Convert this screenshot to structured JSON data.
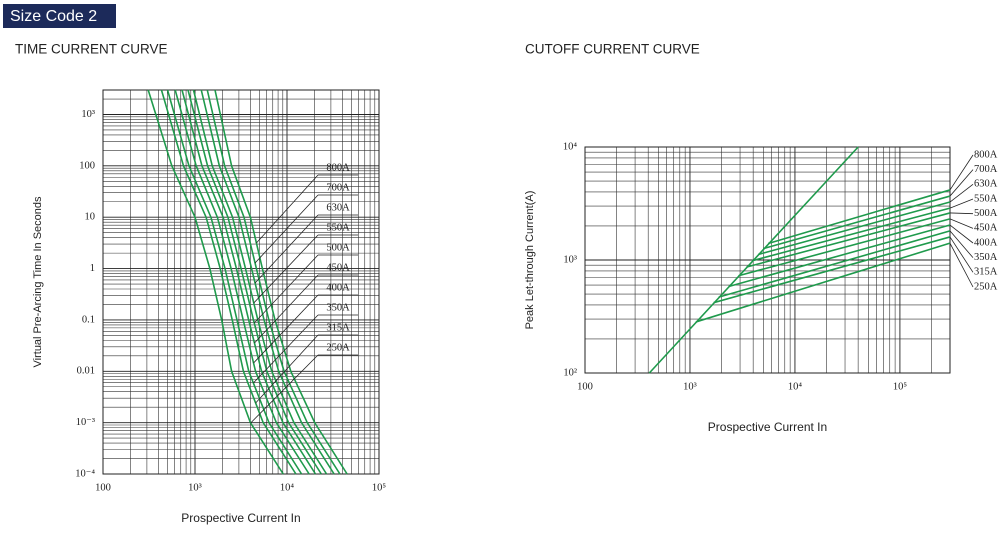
{
  "header": {
    "badge": "Size Code 2"
  },
  "chart_data": [
    {
      "type": "line",
      "title": "TIME CURRENT CURVE",
      "xlabel": "Prospective Current In",
      "ylabel": "Virtual Pre-Arcing Time In Seconds",
      "xscale": "log",
      "yscale": "log",
      "grid": true,
      "xlim": [
        100,
        100000
      ],
      "ylim": [
        0.0001,
        3000
      ],
      "xticks": [
        100,
        {
          "value": 1000,
          "label": "10³"
        },
        {
          "value": 10000,
          "label": "10⁴"
        },
        {
          "value": 100000,
          "label": "10⁵"
        }
      ],
      "yticks": [
        {
          "value": 0.0001,
          "label": "10⁻⁴"
        },
        {
          "value": 0.001,
          "label": "10⁻³"
        },
        0.01,
        0.1,
        1,
        10,
        100,
        {
          "value": 1000,
          "label": "10³"
        }
      ],
      "series": [
        {
          "name": "800A",
          "color": "#1f9a4c",
          "x": [
            1650,
            2500,
            4000,
            5400,
            7400,
            11000,
            20000,
            45000
          ],
          "values": [
            3000,
            100,
            10,
            1,
            0.1,
            0.01,
            0.001,
            0.0001
          ]
        },
        {
          "name": "700A",
          "color": "#1f9a4c",
          "x": [
            1360,
            2100,
            3410,
            4650,
            6350,
            9290,
            16600,
            37600
          ],
          "values": [
            3000,
            100,
            10,
            1,
            0.1,
            0.01,
            0.001,
            0.0001
          ]
        },
        {
          "name": "630A",
          "color": "#1f9a4c",
          "x": [
            1170,
            1840,
            3010,
            4120,
            5630,
            8120,
            14400,
            32500
          ],
          "values": [
            3000,
            100,
            10,
            1,
            0.1,
            0.01,
            0.001,
            0.0001
          ]
        },
        {
          "name": "550A",
          "color": "#1f9a4c",
          "x": [
            963,
            1540,
            2560,
            3540,
            4820,
            6830,
            11900,
            26900
          ],
          "values": [
            3000,
            100,
            10,
            1,
            0.1,
            0.01,
            0.001,
            0.0001
          ]
        },
        {
          "name": "500A",
          "color": "#1f9a4c",
          "x": [
            840,
            1370,
            2280,
            3170,
            4320,
            6040,
            10400,
            23600
          ],
          "values": [
            3000,
            100,
            10,
            1,
            0.1,
            0.01,
            0.001,
            0.0001
          ]
        },
        {
          "name": "450A",
          "color": "#1f9a4c",
          "x": [
            723,
            1190,
            2020,
            2820,
            3830,
            5290,
            9030,
            20400
          ],
          "values": [
            3000,
            100,
            10,
            1,
            0.1,
            0.01,
            0.001,
            0.0001
          ]
        },
        {
          "name": "400A",
          "color": "#1f9a4c",
          "x": [
            609,
            1030,
            1750,
            2470,
            3340,
            4550,
            7660,
            17400
          ],
          "values": [
            3000,
            100,
            10,
            1,
            0.1,
            0.01,
            0.001,
            0.0001
          ]
        },
        {
          "name": "350A",
          "color": "#1f9a4c",
          "x": [
            503,
            860,
            1490,
            2120,
            2860,
            3840,
            6370,
            14400
          ],
          "values": [
            3000,
            100,
            10,
            1,
            0.1,
            0.01,
            0.001,
            0.0001
          ]
        },
        {
          "name": "315A",
          "color": "#1f9a4c",
          "x": [
            432,
            750,
            1320,
            1880,
            2540,
            3360,
            5510,
            12500
          ],
          "values": [
            3000,
            100,
            10,
            1,
            0.1,
            0.01,
            0.001,
            0.0001
          ]
        },
        {
          "name": "250A",
          "color": "#1f9a4c",
          "x": [
            310,
            560,
            1000,
            1450,
            1950,
            2500,
            4000,
            9100
          ],
          "values": [
            3000,
            100,
            10,
            1,
            0.1,
            0.01,
            0.001,
            0.0001
          ]
        }
      ]
    },
    {
      "type": "line",
      "title": "CUTOFF CURRENT CURVE",
      "xlabel": "Prospective Current In",
      "ylabel": "Peak Let-through Current(A)",
      "xscale": "log",
      "yscale": "log",
      "grid": true,
      "xlim": [
        100,
        300000
      ],
      "ylim": [
        100,
        10000
      ],
      "xticks": [
        100,
        {
          "value": 1000,
          "label": "10³"
        },
        {
          "value": 10000,
          "label": "10⁴"
        },
        {
          "value": 100000,
          "label": "10⁵"
        }
      ],
      "yticks": [
        {
          "value": 100,
          "label": "10²"
        },
        {
          "value": 1000,
          "label": "10³"
        },
        {
          "value": 10000,
          "label": "10⁴"
        }
      ],
      "series": [
        {
          "color": "#1f9a4c",
          "x": [
            410,
            40000
          ],
          "values": [
            100,
            10000
          ]
        },
        {
          "name": "800A",
          "color": "#1f9a4c",
          "x": [
            5560,
            300000
          ],
          "values": [
            1400,
            4170
          ]
        },
        {
          "name": "700A",
          "color": "#1f9a4c",
          "x": [
            4990,
            300000
          ],
          "values": [
            1260,
            3680
          ]
        },
        {
          "name": "630A",
          "color": "#1f9a4c",
          "x": [
            4480,
            300000
          ],
          "values": [
            1120,
            3260
          ]
        },
        {
          "name": "550A",
          "color": "#1f9a4c",
          "x": [
            3930,
            300000
          ],
          "values": [
            986,
            2880
          ]
        },
        {
          "name": "500A",
          "color": "#1f9a4c",
          "x": [
            3450,
            300000
          ],
          "values": [
            865,
            2610
          ]
        },
        {
          "name": "450A",
          "color": "#1f9a4c",
          "x": [
            2900,
            300000
          ],
          "values": [
            726,
            2310
          ]
        },
        {
          "name": "400A",
          "color": "#1f9a4c",
          "x": [
            2340,
            300000
          ],
          "values": [
            583,
            2040
          ]
        },
        {
          "name": "350A",
          "color": "#1f9a4c",
          "x": [
            1880,
            300000
          ],
          "values": [
            469,
            1810
          ]
        },
        {
          "name": "315A",
          "color": "#1f9a4c",
          "x": [
            1680,
            300000
          ],
          "values": [
            419,
            1600
          ]
        },
        {
          "name": "250A",
          "color": "#1f9a4c",
          "x": [
            1140,
            300000
          ],
          "values": [
            283,
            1410
          ]
        }
      ]
    }
  ]
}
